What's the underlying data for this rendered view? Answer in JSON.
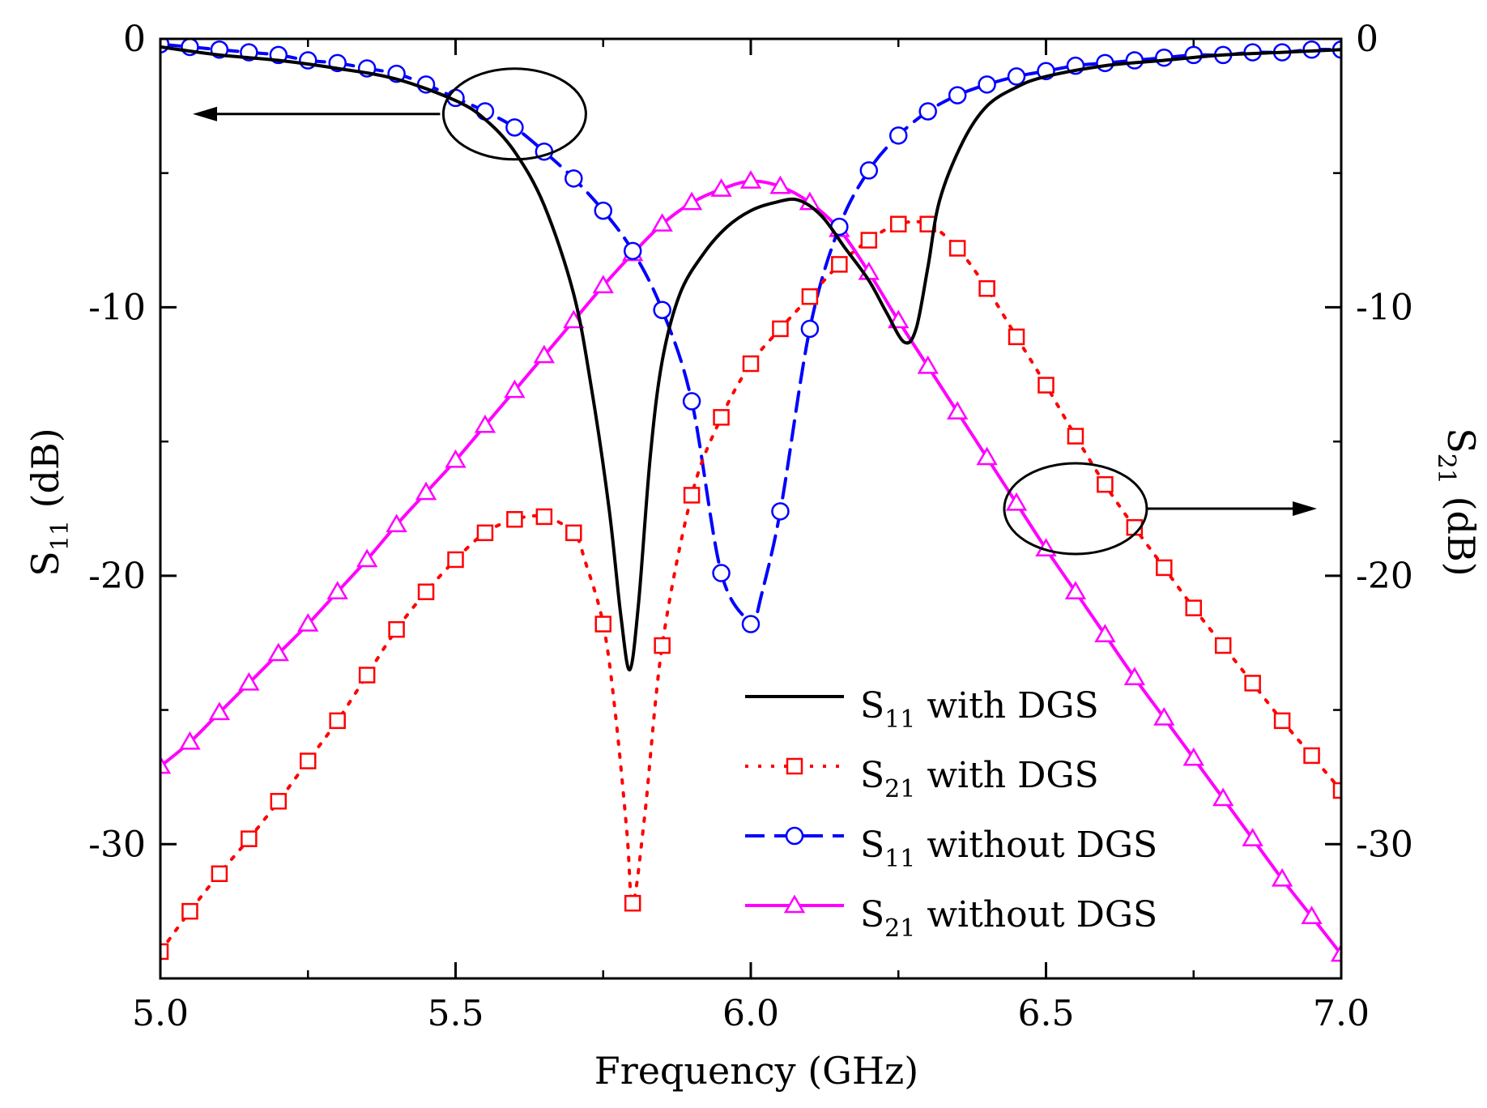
{
  "chart_data": {
    "type": "line",
    "xlabel": "Frequency (GHz)",
    "ylabel_left": {
      "main": "S",
      "sub": "11",
      "unit": " (dB)"
    },
    "ylabel_right": {
      "main": "S",
      "sub": "21",
      "unit": " (dB)"
    },
    "xlim": [
      5.0,
      7.0
    ],
    "ylim": [
      -35,
      0
    ],
    "x_ticks": [
      5.0,
      5.5,
      6.0,
      6.5,
      7.0
    ],
    "x_tick_labels": [
      "5.0",
      "5.5",
      "6.0",
      "6.5",
      "7.0"
    ],
    "y_ticks": [
      0,
      -10,
      -20,
      -30
    ],
    "y_tick_labels": [
      "0",
      "-10",
      "-20",
      "-30"
    ],
    "series": [
      {
        "name": "S11 with DGS",
        "legend": {
          "main": "S",
          "sub": "11",
          "rest": " with DGS"
        },
        "axis": "left",
        "color": "#000000",
        "dash": "",
        "marker": "none",
        "x": [
          5.0,
          5.1,
          5.2,
          5.3,
          5.4,
          5.5,
          5.55,
          5.6,
          5.65,
          5.7,
          5.73,
          5.76,
          5.78,
          5.795,
          5.81,
          5.83,
          5.85,
          5.88,
          5.92,
          5.96,
          6.0,
          6.04,
          6.08,
          6.12,
          6.16,
          6.2,
          6.23,
          6.26,
          6.28,
          6.3,
          6.32,
          6.36,
          6.4,
          6.45,
          6.5,
          6.6,
          6.7,
          6.8,
          6.9,
          7.0
        ],
        "y": [
          -0.3,
          -0.6,
          -0.8,
          -1.1,
          -1.5,
          -2.3,
          -3.0,
          -4.2,
          -6.2,
          -9.5,
          -13.0,
          -17.5,
          -21.5,
          -23.5,
          -21.0,
          -15.5,
          -12.0,
          -9.5,
          -8.0,
          -7.0,
          -6.4,
          -6.1,
          -6.0,
          -6.6,
          -7.8,
          -9.0,
          -10.2,
          -11.3,
          -10.8,
          -8.5,
          -6.0,
          -3.8,
          -2.5,
          -1.8,
          -1.4,
          -1.0,
          -0.8,
          -0.6,
          -0.5,
          -0.4
        ]
      },
      {
        "name": "S21 with DGS",
        "legend": {
          "main": "S",
          "sub": "21",
          "rest": " with DGS"
        },
        "axis": "right",
        "color": "#ff0000",
        "dash": "4 12",
        "marker": "square",
        "x": [
          5.0,
          5.05,
          5.1,
          5.15,
          5.2,
          5.25,
          5.3,
          5.35,
          5.4,
          5.45,
          5.5,
          5.55,
          5.6,
          5.65,
          5.7,
          5.72,
          5.75,
          5.77,
          5.79,
          5.8,
          5.82,
          5.85,
          5.9,
          5.95,
          6.0,
          6.05,
          6.1,
          6.15,
          6.2,
          6.25,
          6.3,
          6.35,
          6.4,
          6.45,
          6.5,
          6.55,
          6.6,
          6.65,
          6.7,
          6.75,
          6.8,
          6.85,
          6.9,
          6.95,
          7.0
        ],
        "y": [
          -34.0,
          -32.5,
          -31.1,
          -29.8,
          -28.4,
          -26.9,
          -25.4,
          -23.7,
          -22.0,
          -20.6,
          -19.4,
          -18.4,
          -17.9,
          -17.8,
          -18.4,
          -19.5,
          -21.8,
          -25.0,
          -29.5,
          -32.2,
          -29.0,
          -22.6,
          -17.0,
          -14.1,
          -12.1,
          -10.8,
          -9.6,
          -8.4,
          -7.5,
          -6.9,
          -6.9,
          -7.8,
          -9.3,
          -11.1,
          -12.9,
          -14.8,
          -16.6,
          -18.2,
          -19.7,
          -21.2,
          -22.6,
          -24.0,
          -25.4,
          -26.7,
          -28.0
        ]
      },
      {
        "name": "S11 without DGS",
        "legend": {
          "main": "S",
          "sub": "11",
          "rest": " without DGS"
        },
        "axis": "left",
        "color": "#0000ff",
        "dash": "24 12",
        "marker": "circle",
        "x": [
          5.0,
          5.05,
          5.1,
          5.15,
          5.2,
          5.25,
          5.3,
          5.35,
          5.4,
          5.45,
          5.5,
          5.55,
          5.6,
          5.65,
          5.7,
          5.75,
          5.8,
          5.85,
          5.9,
          5.95,
          6.0,
          6.005,
          6.015,
          6.05,
          6.1,
          6.15,
          6.2,
          6.25,
          6.3,
          6.35,
          6.4,
          6.45,
          6.5,
          6.55,
          6.6,
          6.65,
          6.7,
          6.75,
          6.8,
          6.85,
          6.9,
          6.95,
          7.0
        ],
        "y": [
          -0.2,
          -0.3,
          -0.4,
          -0.5,
          -0.6,
          -0.8,
          -0.9,
          -1.1,
          -1.3,
          -1.7,
          -2.2,
          -2.7,
          -3.3,
          -4.2,
          -5.2,
          -6.4,
          -7.9,
          -10.1,
          -13.5,
          -19.9,
          -21.8,
          -21.9,
          -21.0,
          -17.6,
          -10.8,
          -7.0,
          -4.9,
          -3.6,
          -2.7,
          -2.1,
          -1.7,
          -1.4,
          -1.2,
          -1.0,
          -0.9,
          -0.8,
          -0.7,
          -0.6,
          -0.6,
          -0.5,
          -0.5,
          -0.4,
          -0.4
        ]
      },
      {
        "name": "S21 without DGS",
        "legend": {
          "main": "S",
          "sub": "21",
          "rest": " without DGS"
        },
        "axis": "right",
        "color": "#ff00ff",
        "dash": "",
        "marker": "triangle",
        "x": [
          5.0,
          5.05,
          5.1,
          5.15,
          5.2,
          5.25,
          5.3,
          5.35,
          5.4,
          5.45,
          5.5,
          5.55,
          5.6,
          5.65,
          5.7,
          5.75,
          5.8,
          5.85,
          5.9,
          5.95,
          6.0,
          6.05,
          6.1,
          6.15,
          6.2,
          6.25,
          6.3,
          6.35,
          6.4,
          6.45,
          6.5,
          6.55,
          6.6,
          6.65,
          6.7,
          6.75,
          6.8,
          6.85,
          6.9,
          6.95,
          7.0
        ],
        "y": [
          -27.1,
          -26.2,
          -25.1,
          -24.0,
          -22.9,
          -21.8,
          -20.6,
          -19.4,
          -18.1,
          -16.9,
          -15.7,
          -14.4,
          -13.1,
          -11.8,
          -10.5,
          -9.2,
          -8.0,
          -6.9,
          -6.1,
          -5.6,
          -5.3,
          -5.5,
          -6.1,
          -7.1,
          -8.7,
          -10.5,
          -12.2,
          -13.9,
          -15.6,
          -17.3,
          -19.0,
          -20.6,
          -22.2,
          -23.8,
          -25.3,
          -26.8,
          -28.3,
          -29.8,
          -31.3,
          -32.7,
          -34.1
        ]
      }
    ],
    "annotations": [
      {
        "type": "ellipse-arrow",
        "target": "left axis",
        "cx": 5.6,
        "cy": -2.8,
        "direction": "left"
      },
      {
        "type": "ellipse-arrow",
        "target": "right axis",
        "cx": 6.55,
        "cy": -17.5,
        "direction": "right"
      }
    ]
  }
}
